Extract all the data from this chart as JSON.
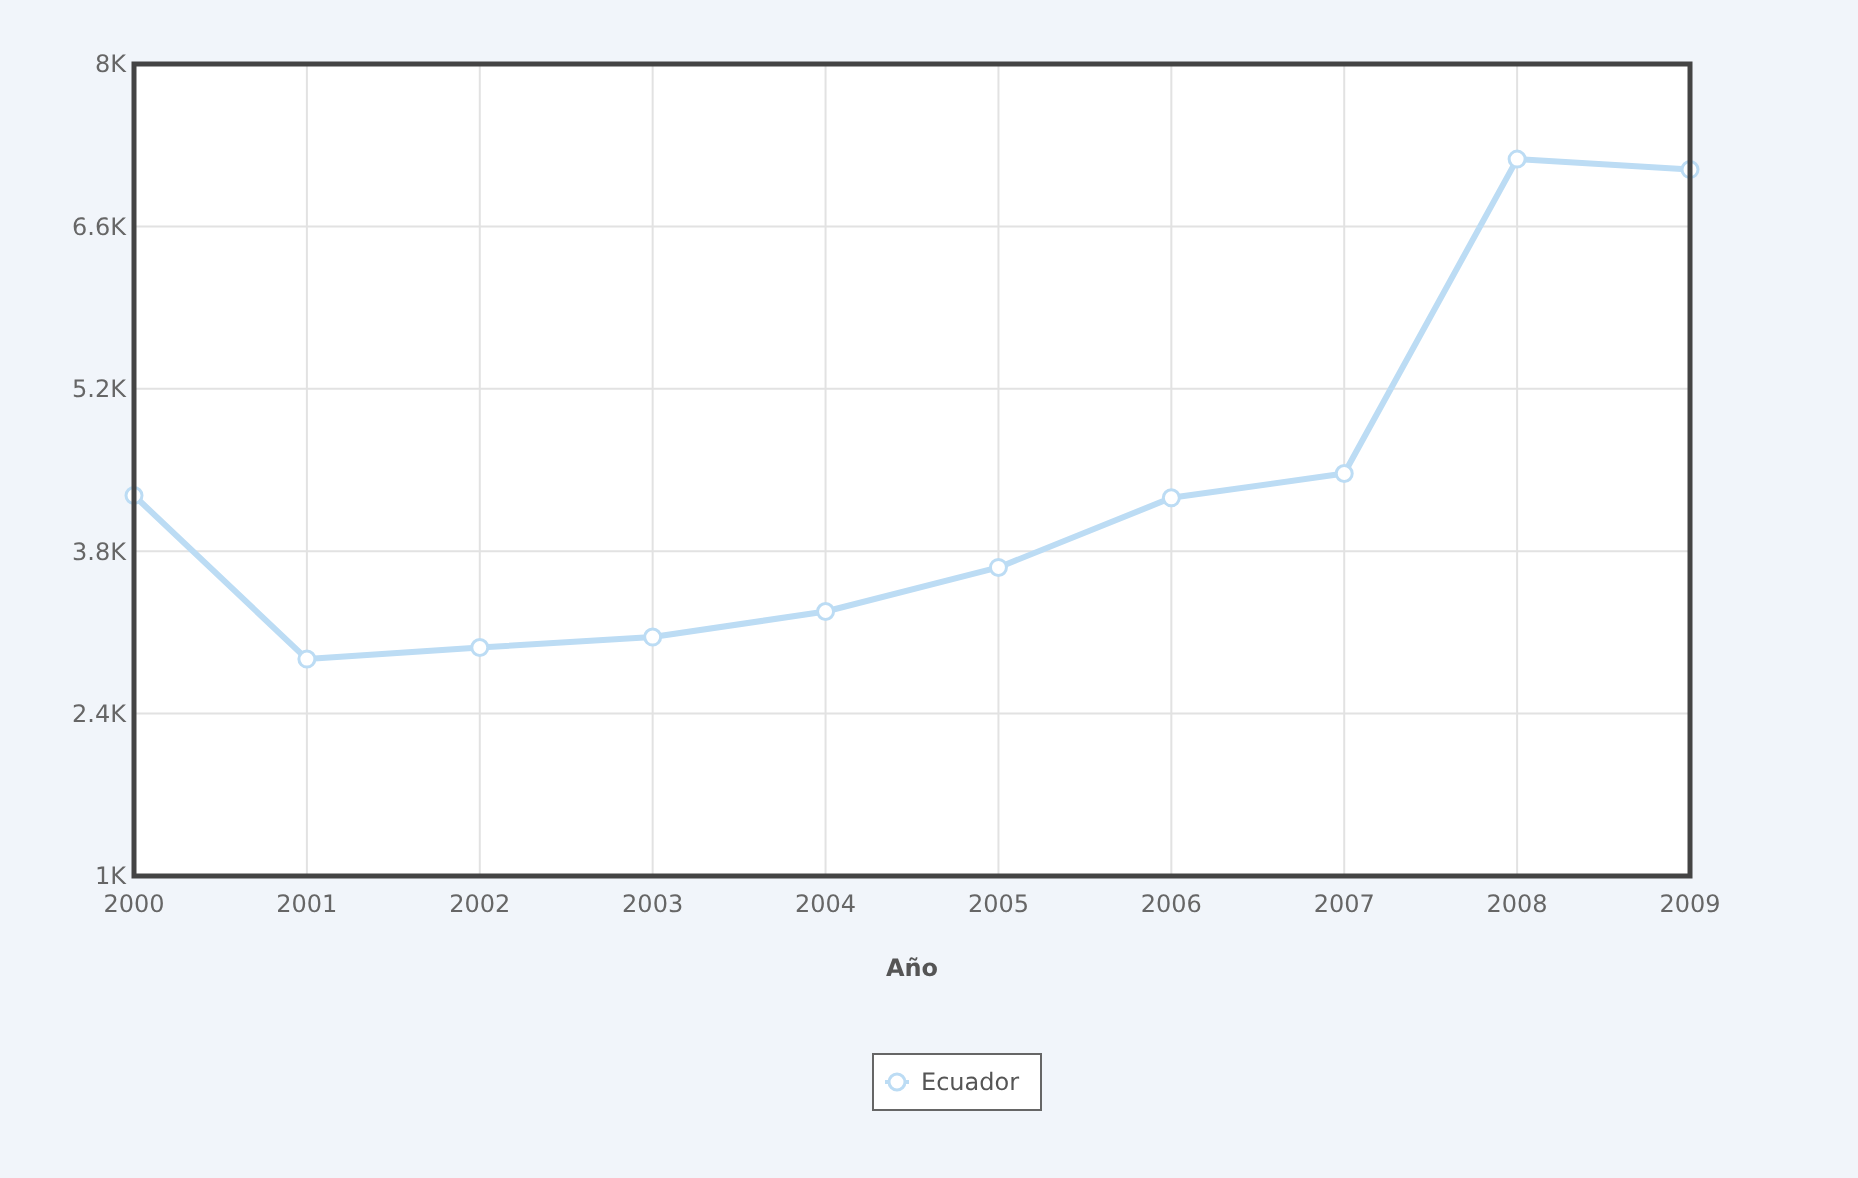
{
  "chart_data": {
    "type": "line",
    "xlabel": "Año",
    "categories": [
      "2000",
      "2001",
      "2002",
      "2003",
      "2004",
      "2005",
      "2006",
      "2007",
      "2008",
      "2009"
    ],
    "series": [
      {
        "name": "Ecuador",
        "color": "#bcdcf4",
        "values": [
          4280,
          2870,
          2970,
          3060,
          3280,
          3660,
          4260,
          4470,
          7180,
          7090
        ]
      }
    ],
    "ylim": [
      1000,
      8000
    ],
    "yticks": [
      {
        "value": 1000,
        "label": "1K"
      },
      {
        "value": 2400,
        "label": "2.4K"
      },
      {
        "value": 3800,
        "label": "3.8K"
      },
      {
        "value": 5200,
        "label": "5.2K"
      },
      {
        "value": 6600,
        "label": "6.6K"
      },
      {
        "value": 8000,
        "label": "8K"
      }
    ],
    "grid": true,
    "legend": "bottom",
    "marker": "circle",
    "line_style": "solid"
  }
}
